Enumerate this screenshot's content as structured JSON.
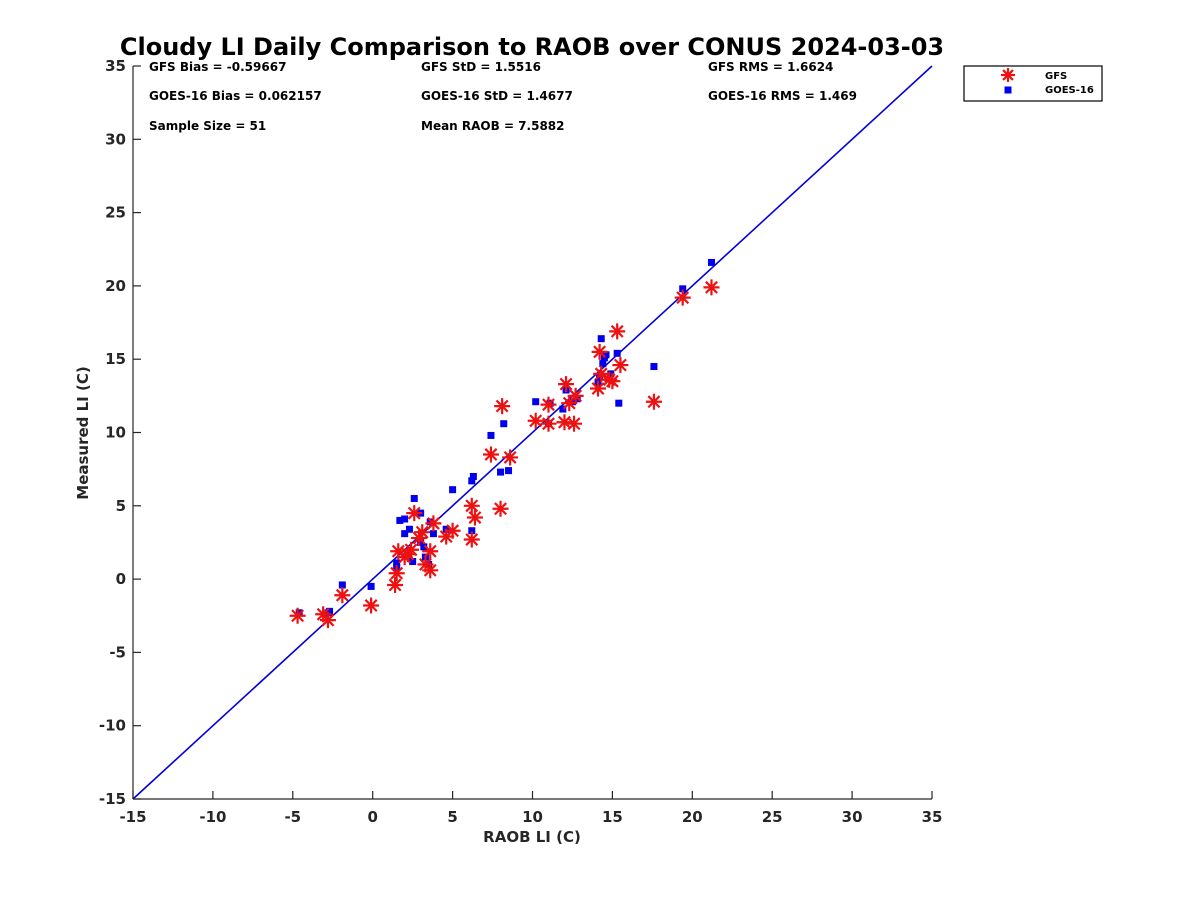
{
  "chart_data": {
    "type": "scatter",
    "title": "Cloudy LI Daily Comparison to RAOB over CONUS 2024-03-03",
    "xlabel": "RAOB LI (C)",
    "ylabel": "Measured LI (C)",
    "xlim": [
      -15,
      35
    ],
    "ylim": [
      -15,
      35
    ],
    "xticks": [
      "-15",
      "-10",
      "-5",
      "0",
      "5",
      "10",
      "15",
      "20",
      "25",
      "30",
      "35"
    ],
    "yticks": [
      "-15",
      "-10",
      "-5",
      "0",
      "5",
      "10",
      "15",
      "20",
      "25",
      "30",
      "35"
    ],
    "grid": false,
    "legend_position": "top-right, outside plot",
    "reference_line": {
      "type": "one-to-one",
      "color": "#0000dd"
    },
    "stats": [
      [
        "GFS Bias = -0.59667",
        "GFS StD = 1.5516",
        "GFS RMS = 1.6624"
      ],
      [
        "GOES-16 Bias = 0.062157",
        "GOES-16 StD = 1.4677",
        "GOES-16 RMS = 1.469"
      ],
      [
        "Sample Size = 51",
        "Mean RAOB = 7.5882",
        ""
      ]
    ],
    "series": [
      {
        "name": "GFS",
        "marker": "asterisk",
        "color": "#ee1111",
        "points": [
          [
            -4.7,
            -2.5
          ],
          [
            -3.1,
            -2.4
          ],
          [
            -2.8,
            -2.8
          ],
          [
            -1.9,
            -1.1
          ],
          [
            -0.1,
            -1.8
          ],
          [
            1.4,
            -0.4
          ],
          [
            1.5,
            0.4
          ],
          [
            1.6,
            1.9
          ],
          [
            2.0,
            1.5
          ],
          [
            2.2,
            1.7
          ],
          [
            2.4,
            2.0
          ],
          [
            2.6,
            4.5
          ],
          [
            2.9,
            2.8
          ],
          [
            3.1,
            3.2
          ],
          [
            3.3,
            1.0
          ],
          [
            3.6,
            0.6
          ],
          [
            3.6,
            1.9
          ],
          [
            3.8,
            3.8
          ],
          [
            4.6,
            2.9
          ],
          [
            5.0,
            3.3
          ],
          [
            6.2,
            5.0
          ],
          [
            6.2,
            2.7
          ],
          [
            6.4,
            4.2
          ],
          [
            7.4,
            8.5
          ],
          [
            8.0,
            4.8
          ],
          [
            8.1,
            11.8
          ],
          [
            8.6,
            8.3
          ],
          [
            10.2,
            10.8
          ],
          [
            11.0,
            10.6
          ],
          [
            11.0,
            11.9
          ],
          [
            12.0,
            10.7
          ],
          [
            12.1,
            13.3
          ],
          [
            12.3,
            12.0
          ],
          [
            12.6,
            10.6
          ],
          [
            12.7,
            12.5
          ],
          [
            14.1,
            13.0
          ],
          [
            14.2,
            15.5
          ],
          [
            14.3,
            14.0
          ],
          [
            14.8,
            13.6
          ],
          [
            15.0,
            13.5
          ],
          [
            15.3,
            16.9
          ],
          [
            15.5,
            14.6
          ],
          [
            17.6,
            12.1
          ],
          [
            19.4,
            19.2
          ],
          [
            21.2,
            19.9
          ]
        ]
      },
      {
        "name": "GOES-16",
        "marker": "square",
        "color": "#0000ee",
        "points": [
          [
            -4.6,
            -2.3
          ],
          [
            -2.8,
            -2.3
          ],
          [
            -2.7,
            -2.2
          ],
          [
            -1.9,
            -0.4
          ],
          [
            -0.1,
            -0.5
          ],
          [
            1.5,
            0.8
          ],
          [
            1.5,
            1.1
          ],
          [
            1.7,
            4.0
          ],
          [
            2.0,
            3.1
          ],
          [
            2.0,
            4.1
          ],
          [
            2.3,
            3.4
          ],
          [
            2.5,
            1.2
          ],
          [
            2.6,
            5.5
          ],
          [
            3.0,
            4.5
          ],
          [
            3.0,
            2.5
          ],
          [
            3.2,
            2.2
          ],
          [
            3.3,
            1.5
          ],
          [
            3.5,
            1.0
          ],
          [
            3.6,
            3.9
          ],
          [
            3.8,
            3.1
          ],
          [
            4.6,
            3.4
          ],
          [
            5.0,
            6.1
          ],
          [
            6.2,
            3.3
          ],
          [
            6.2,
            6.7
          ],
          [
            6.3,
            7.0
          ],
          [
            7.4,
            9.8
          ],
          [
            8.0,
            7.3
          ],
          [
            8.2,
            10.6
          ],
          [
            8.5,
            7.4
          ],
          [
            10.2,
            12.1
          ],
          [
            11.0,
            10.6
          ],
          [
            11.1,
            12.0
          ],
          [
            11.9,
            11.6
          ],
          [
            12.1,
            12.9
          ],
          [
            12.5,
            12.1
          ],
          [
            12.8,
            12.3
          ],
          [
            14.1,
            13.4
          ],
          [
            14.2,
            13.8
          ],
          [
            14.3,
            16.4
          ],
          [
            14.4,
            14.7
          ],
          [
            14.5,
            15.1
          ],
          [
            14.6,
            15.3
          ],
          [
            14.9,
            14.0
          ],
          [
            15.3,
            15.4
          ],
          [
            15.4,
            12.0
          ],
          [
            17.6,
            14.5
          ],
          [
            19.4,
            19.8
          ],
          [
            21.2,
            21.6
          ]
        ]
      }
    ]
  }
}
